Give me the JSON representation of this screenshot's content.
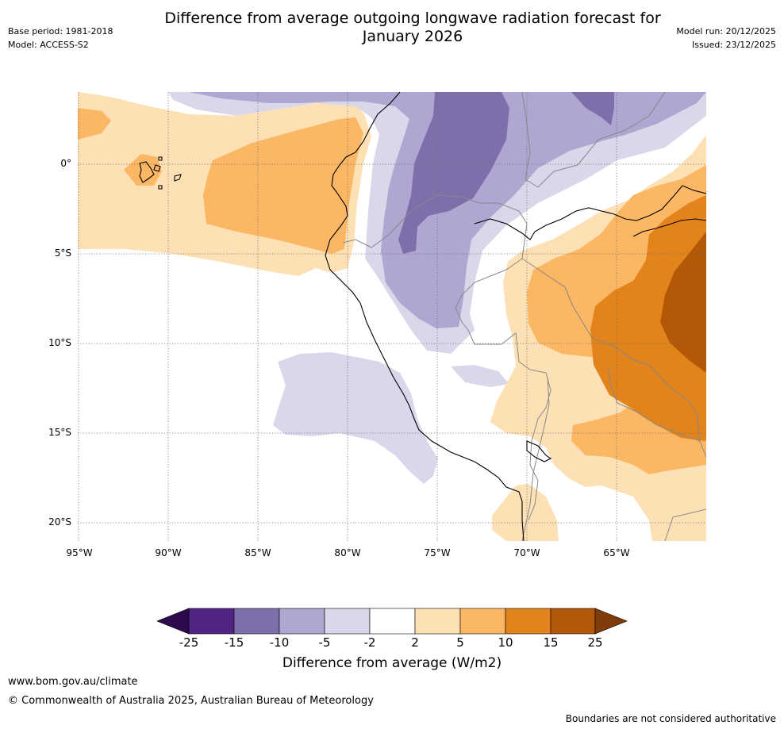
{
  "header": {
    "title_line1": "Difference from average outgoing longwave radiation forecast for",
    "title_line2": "January 2026",
    "base_period": "Base period: 1981-2018",
    "model": "Model: ACCESS-S2",
    "model_run": "Model run: 20/12/2025",
    "issued": "Issued: 23/12/2025"
  },
  "map": {
    "lat_labels": [
      "0°",
      "5°S",
      "10°S",
      "15°S",
      "20°S"
    ],
    "lon_labels": [
      "95°W",
      "90°W",
      "85°W",
      "80°W",
      "75°W",
      "70°W",
      "65°W"
    ]
  },
  "colorbar": {
    "ticks": [
      "-25",
      "-15",
      "-10",
      "-5",
      "-2",
      "2",
      "5",
      "10",
      "15",
      "25"
    ],
    "label": "Difference from average (W/m2)",
    "colors": {
      "under": "#2d0a4e",
      "b1": "#4f2484",
      "b2": "#7e6fab",
      "b3": "#afa6d1",
      "b4": "#d8d8ea",
      "b5": "#ffffff",
      "b6": "#fde0b4",
      "b7": "#fbb763",
      "b8": "#e2831b",
      "b9": "#b35806",
      "over": "#7f3b08"
    }
  },
  "footer": {
    "url": "www.bom.gov.au/climate",
    "copyright": "© Commonwealth of Australia 2025, Australian Bureau of Meteorology",
    "note": "Boundaries are not considered authoritative"
  }
}
